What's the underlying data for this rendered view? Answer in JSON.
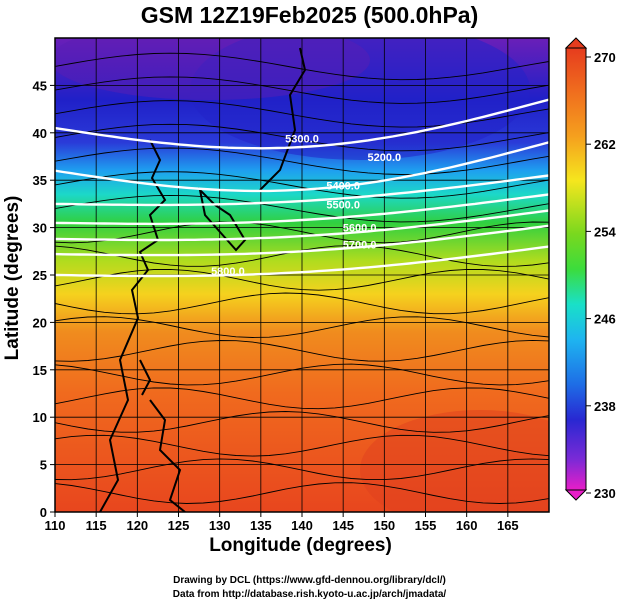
{
  "title": "GSM 12Z19Feb2025 (500.0hPa)",
  "x_axis": {
    "label": "Longitude (degrees)",
    "range": [
      110,
      170
    ],
    "ticks": [
      "110",
      "115",
      "120",
      "125",
      "130",
      "135",
      "140",
      "145",
      "150",
      "155",
      "160",
      "165"
    ]
  },
  "y_axis": {
    "label": "Latitude  (degrees)",
    "range": [
      0,
      50
    ],
    "ticks": [
      "0",
      "5",
      "10",
      "15",
      "20",
      "25",
      "30",
      "35",
      "40",
      "45"
    ]
  },
  "colorbar": {
    "ticks": [
      "230",
      "238",
      "246",
      "254",
      "262",
      "270"
    ],
    "min": 230,
    "max": 270,
    "colors": [
      "#e81ec8",
      "#7a2ad6",
      "#2828d2",
      "#1e6ee6",
      "#1eb4f0",
      "#19e0c8",
      "#3cdc3c",
      "#a0dc1e",
      "#f5e61e",
      "#f5a01e",
      "#f06e1e",
      "#e63c1e"
    ]
  },
  "contours": [
    {
      "label": "5200.0"
    },
    {
      "label": "5300.0"
    },
    {
      "label": "5400.0"
    },
    {
      "label": "5500.0"
    },
    {
      "label": "5600.0"
    },
    {
      "label": "5700.0"
    },
    {
      "label": "5800.0"
    }
  ],
  "credits": {
    "line1": "Drawing by DCL (https://www.gfd-dennou.org/library/dcl/)",
    "line2": "Data from http://database.rish.kyoto-u.ac.jp/arch/jmadata/"
  }
}
